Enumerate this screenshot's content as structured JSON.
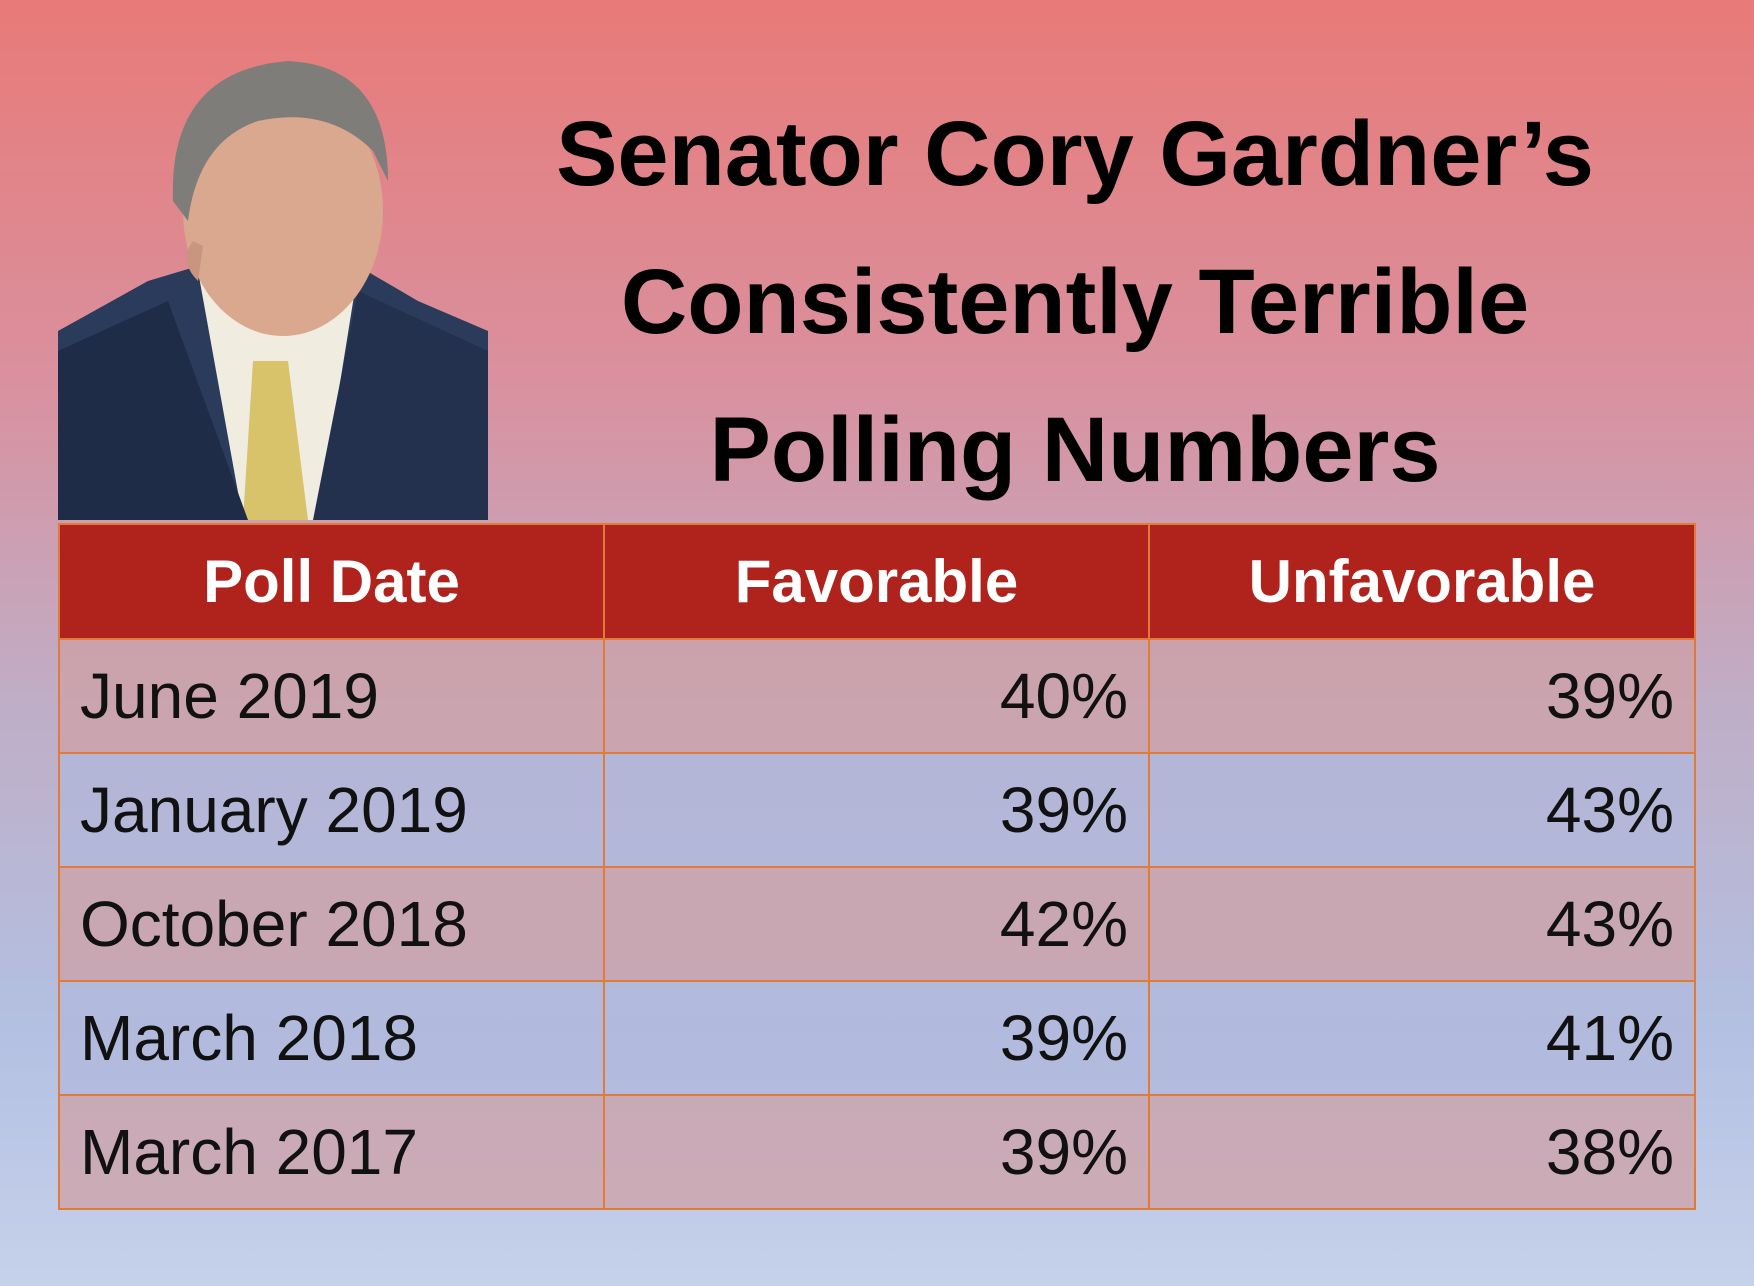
{
  "header": {
    "title": [
      "Senator Cory Gardner’s",
      "Consistently Terrible",
      "Polling Numbers"
    ]
  },
  "table": {
    "columns": [
      "Poll Date",
      "Favorable",
      "Unfavorable"
    ],
    "rows": [
      [
        "June 2019",
        "40%",
        "39%"
      ],
      [
        "January 2019",
        "39%",
        "43%"
      ],
      [
        "October 2018",
        "42%",
        "43%"
      ],
      [
        "March 2018",
        "39%",
        "41%"
      ],
      [
        "March 2017",
        "39%",
        "38%"
      ]
    ]
  }
}
